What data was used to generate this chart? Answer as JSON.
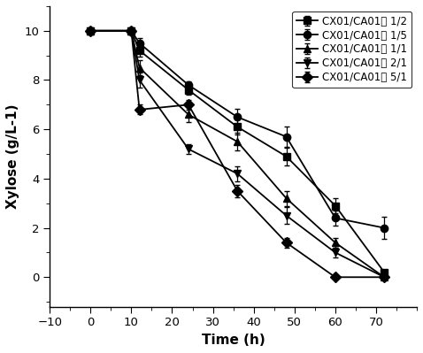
{
  "title": "",
  "xlabel": "Time (h)",
  "ylabel": "Xylose (g/L-1)",
  "xlim": [
    -10,
    80
  ],
  "ylim": [
    -1.2,
    11
  ],
  "xticks": [
    -10,
    0,
    10,
    20,
    30,
    40,
    50,
    60,
    70
  ],
  "yticks": [
    0,
    2,
    4,
    6,
    8,
    10
  ],
  "series": [
    {
      "label": "CX01/CA01： 1/2",
      "marker": "s",
      "x": [
        0,
        10,
        12,
        24,
        36,
        48,
        60,
        72
      ],
      "y": [
        10,
        10,
        9.2,
        7.6,
        6.1,
        4.9,
        2.9,
        0.2
      ],
      "yerr": [
        0.05,
        0.1,
        0.25,
        0.2,
        0.3,
        0.35,
        0.3,
        0.1
      ]
    },
    {
      "label": "CX01/CA01： 1/5",
      "marker": "o",
      "x": [
        0,
        10,
        12,
        24,
        36,
        48,
        60,
        72
      ],
      "y": [
        10,
        10,
        9.5,
        7.8,
        6.5,
        5.7,
        2.4,
        2.0
      ],
      "yerr": [
        0.05,
        0.1,
        0.2,
        0.15,
        0.35,
        0.4,
        0.3,
        0.45
      ]
    },
    {
      "label": "CX01/CA01： 1/1",
      "marker": "^",
      "x": [
        0,
        10,
        12,
        24,
        36,
        48,
        60,
        72
      ],
      "y": [
        10,
        10,
        8.5,
        6.6,
        5.5,
        3.2,
        1.4,
        0.0
      ],
      "yerr": [
        0.05,
        0.1,
        0.3,
        0.3,
        0.35,
        0.3,
        0.2,
        0.05
      ]
    },
    {
      "label": "CX01/CA01： 2/1",
      "marker": "v",
      "x": [
        0,
        10,
        12,
        24,
        36,
        48,
        60,
        72
      ],
      "y": [
        10,
        10,
        8.0,
        5.2,
        4.2,
        2.5,
        1.0,
        0.0
      ],
      "yerr": [
        0.05,
        0.1,
        0.3,
        0.2,
        0.3,
        0.35,
        0.2,
        0.05
      ]
    },
    {
      "label": "CX01/CA01： 5/1",
      "marker": "D",
      "x": [
        0,
        10,
        12,
        24,
        36,
        48,
        60,
        72
      ],
      "y": [
        10,
        10,
        6.8,
        7.0,
        3.5,
        1.4,
        0.0,
        0.0
      ],
      "yerr": [
        0.05,
        0.1,
        0.2,
        0.2,
        0.25,
        0.2,
        0.05,
        0.05
      ]
    }
  ],
  "color": "#000000",
  "markersize": 6,
  "linewidth": 1.3,
  "capsize": 2.5,
  "legend_loc": "upper right",
  "legend_fontsize": 8.5,
  "axis_fontsize": 11,
  "tick_fontsize": 9.5
}
